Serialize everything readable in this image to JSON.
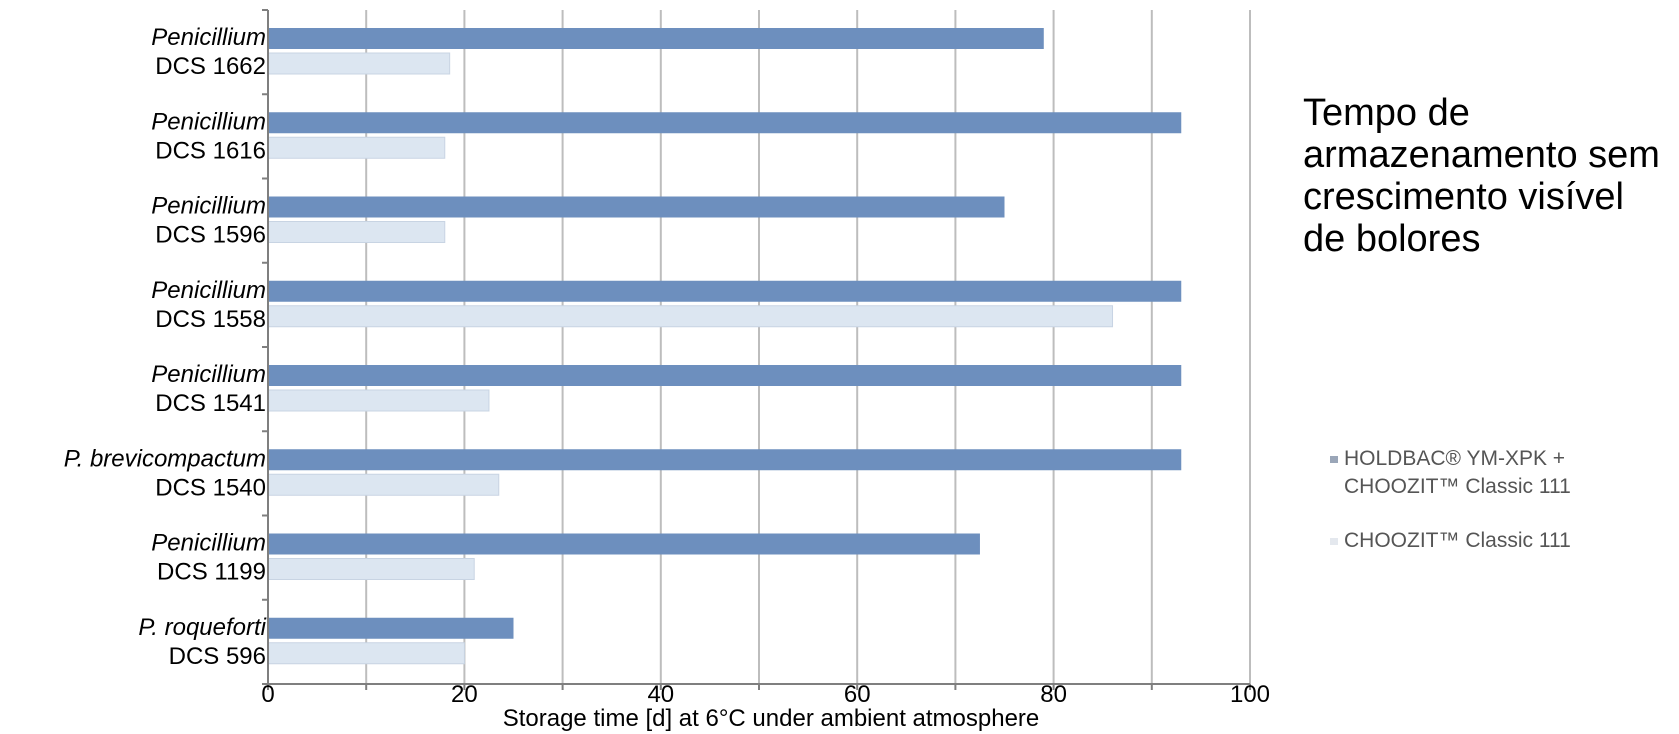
{
  "chart_data": {
    "type": "bar",
    "orientation": "horizontal",
    "categories": [
      {
        "name": "Penicillium",
        "id": "DCS 1662"
      },
      {
        "name": "Penicillium",
        "id": "DCS 1616"
      },
      {
        "name": "Penicillium",
        "id": "DCS 1596"
      },
      {
        "name": "Penicillium",
        "id": "DCS 1558"
      },
      {
        "name": "Penicillium",
        "id": "DCS 1541"
      },
      {
        "name": "P. brevicompactum",
        "id": "DCS 1540"
      },
      {
        "name": "Penicillium",
        "id": "DCS 1199"
      },
      {
        "name": "P. roqueforti",
        "id": "DCS 596"
      }
    ],
    "series": [
      {
        "name": "HOLDBAC® YM-XPK + CHOOZIT™ Classic 111",
        "color": "#6d8fbe",
        "values": [
          79,
          93,
          75,
          93,
          93,
          93,
          72.5,
          25
        ]
      },
      {
        "name": "CHOOZIT™ Classic 111",
        "color": "#dce6f1",
        "values": [
          18.5,
          18,
          18,
          86,
          22.5,
          23.5,
          21,
          20
        ]
      }
    ],
    "xlim": [
      0,
      100
    ],
    "xticks": [
      "0",
      "20",
      "40",
      "60",
      "80",
      "100"
    ],
    "xlabel": "Storage time [d] at 6°C under ambient atmosphere",
    "grid": true,
    "legend_position": "right"
  },
  "side_title": "Tempo de armazenamento sem crescimento visível de bolores",
  "legend": {
    "item1_line1": "HOLDBAC® YM-XPK +",
    "item1_line2": "CHOOZIT™ Classic 111",
    "item2": "CHOOZIT™ Classic 111"
  }
}
